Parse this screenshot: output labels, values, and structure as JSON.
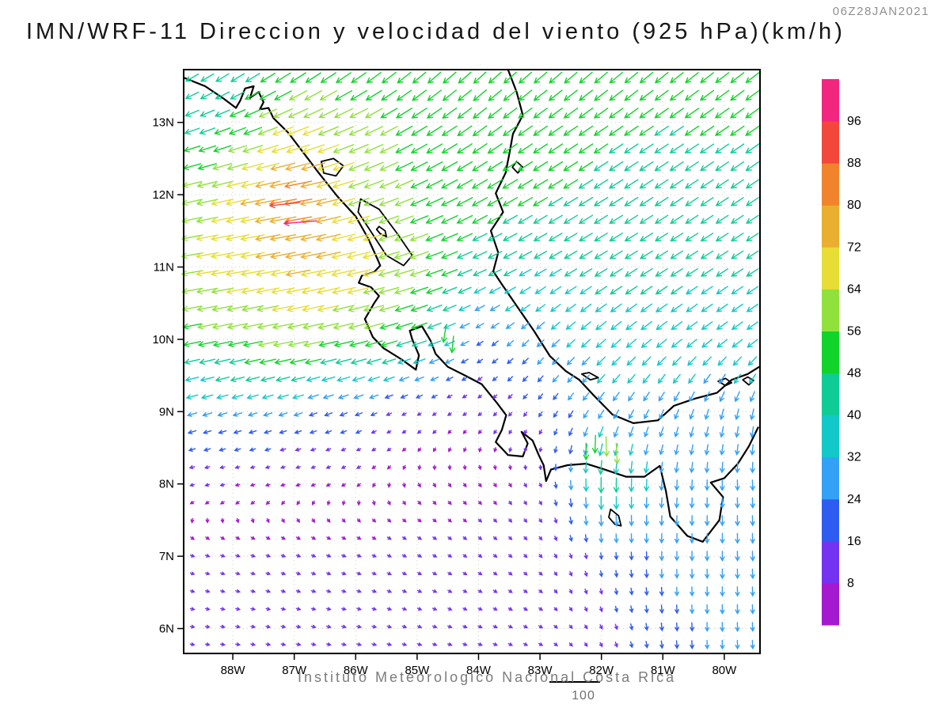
{
  "header": {
    "title": "IMN/WRF-11 Direccion y velocidad del viento (925 hPa)(km/h)",
    "timestamp": "06Z28JAN2021"
  },
  "footer": {
    "caption": "Instituto Meteorologico Nacional Costa Rica",
    "reference_label": "100"
  },
  "axes": {
    "lat_tick_labels": [
      "13N",
      "12N",
      "11N",
      "10N",
      "9N",
      "8N",
      "7N",
      "6N"
    ],
    "lat_tick_values": [
      13,
      12,
      11,
      10,
      9,
      8,
      7,
      6
    ],
    "lon_tick_labels": [
      "88W",
      "87W",
      "86W",
      "85W",
      "84W",
      "83W",
      "82W",
      "81W",
      "80W"
    ],
    "lon_tick_values": [
      -88,
      -87,
      -86,
      -85,
      -84,
      -83,
      -82,
      -81,
      -80
    ]
  },
  "colorbar": {
    "labels": [
      "96",
      "88",
      "80",
      "72",
      "64",
      "56",
      "48",
      "40",
      "32",
      "24",
      "16",
      "8"
    ],
    "colors_low_to_high": [
      "#A31ACF",
      "#7433F0",
      "#2E5CF0",
      "#33A1F6",
      "#12C8C8",
      "#0FCC96",
      "#11D42B",
      "#90E13B",
      "#E7DD35",
      "#EAAE30",
      "#F1832C",
      "#F4473C",
      "#F2267E"
    ]
  },
  "chart_data": {
    "type": "vector_field_map",
    "variable": "wind direction and speed",
    "level": "925 hPa",
    "units": "km/h",
    "lon_range": [
      -88.8,
      -79.43
    ],
    "lat_range": [
      5.66,
      13.73
    ],
    "speed_bins_kmh": [
      8,
      16,
      24,
      32,
      40,
      48,
      56,
      64,
      72,
      80,
      88,
      96
    ],
    "grid_lons": [
      -89,
      -88,
      -87,
      -86,
      -85,
      -84,
      -83,
      -82,
      -81,
      -80,
      -79
    ],
    "grid_lats": [
      14,
      13,
      12,
      11,
      10,
      9,
      8,
      7,
      6,
      5
    ],
    "u_kmh": [
      [
        -34,
        -34,
        -36,
        -35,
        -34,
        -34,
        -35,
        -36,
        -36,
        -37,
        -37
      ],
      [
        -38,
        -45,
        -60,
        -55,
        -45,
        -40,
        -40,
        -40,
        -40,
        -40,
        -40
      ],
      [
        -55,
        -65,
        -84,
        -60,
        -50,
        -45,
        -42,
        -40,
        -38,
        -36,
        -36
      ],
      [
        -60,
        -68,
        -72,
        -70,
        -55,
        -40,
        -35,
        -36,
        -35,
        -34,
        -34
      ],
      [
        -50,
        -55,
        -58,
        -55,
        -45,
        -18,
        -20,
        -28,
        -30,
        -30,
        -32
      ],
      [
        -28,
        -26,
        -24,
        -20,
        -10,
        -8,
        -10,
        -16,
        -12,
        -8,
        -6
      ],
      [
        -10,
        -8,
        -6,
        -4,
        2,
        4,
        4,
        0,
        -2,
        0,
        2
      ],
      [
        8,
        9,
        10,
        10,
        9,
        8,
        8,
        2,
        0,
        0,
        2
      ],
      [
        10,
        11,
        12,
        12,
        11,
        10,
        9,
        6,
        2,
        0,
        2
      ],
      [
        10,
        11,
        12,
        12,
        11,
        10,
        9,
        6,
        2,
        0,
        2
      ]
    ],
    "v_kmh": [
      [
        -24,
        -26,
        -30,
        -32,
        -34,
        -34,
        -34,
        -34,
        -32,
        -30,
        -30
      ],
      [
        -14,
        -18,
        -25,
        -25,
        -28,
        -30,
        -28,
        -28,
        -27,
        -28,
        -28
      ],
      [
        -12,
        -15,
        -14,
        -20,
        -22,
        -25,
        -25,
        -25,
        -25,
        -24,
        -24
      ],
      [
        -10,
        -12,
        -14,
        -16,
        -18,
        -18,
        -20,
        -22,
        -22,
        -22,
        -22
      ],
      [
        -10,
        -12,
        -12,
        -14,
        -15,
        -12,
        -20,
        -24,
        -24,
        -22,
        -22
      ],
      [
        -8,
        -8,
        -8,
        -8,
        -6,
        -6,
        -14,
        -24,
        -26,
        -30,
        -32
      ],
      [
        -3,
        -2,
        -2,
        -3,
        -4,
        -5,
        -8,
        -46,
        -30,
        -30,
        -30
      ],
      [
        -3,
        -3,
        -4,
        -4,
        -5,
        -6,
        -8,
        -18,
        -26,
        -28,
        -28
      ],
      [
        -2,
        -2,
        -3,
        -3,
        -4,
        -4,
        -5,
        -12,
        -22,
        -26,
        -24
      ],
      [
        -2,
        -2,
        -2,
        -3,
        -3,
        -4,
        -4,
        -10,
        -18,
        -22,
        -20
      ]
    ],
    "extra_arrows": [
      {
        "lon": -87.15,
        "lat": 11.87,
        "u": -90,
        "v": -10
      },
      {
        "lon": -86.9,
        "lat": 11.62,
        "u": -97,
        "v": -8
      },
      {
        "lon": -84.55,
        "lat": 10.08,
        "u": -8,
        "v": -52
      },
      {
        "lon": -84.42,
        "lat": 9.93,
        "u": -5,
        "v": -49
      },
      {
        "lon": -82.1,
        "lat": 8.55,
        "u": -2,
        "v": -52
      },
      {
        "lon": -81.92,
        "lat": 8.52,
        "u": 2,
        "v": -58
      },
      {
        "lon": -82.25,
        "lat": 8.45,
        "u": 0,
        "v": -49
      },
      {
        "lon": -81.75,
        "lat": 8.42,
        "u": 3,
        "v": -61
      }
    ],
    "coastlines": [
      [
        [
          -88.8,
          13.62
        ],
        [
          -88.45,
          13.5
        ],
        [
          -88.15,
          13.33
        ],
        [
          -87.95,
          13.2
        ],
        [
          -87.88,
          13.3
        ],
        [
          -87.8,
          13.47
        ],
        [
          -87.66,
          13.5
        ],
        [
          -87.72,
          13.34
        ],
        [
          -87.58,
          13.42
        ],
        [
          -87.5,
          13.28
        ],
        [
          -87.56,
          13.18
        ],
        [
          -87.42,
          13.2
        ],
        [
          -87.34,
          13.06
        ],
        [
          -87.1,
          12.86
        ],
        [
          -86.85,
          12.58
        ],
        [
          -86.6,
          12.3
        ],
        [
          -86.3,
          11.98
        ],
        [
          -86.0,
          11.7
        ],
        [
          -85.8,
          11.4
        ],
        [
          -85.65,
          11.12
        ],
        [
          -85.6,
          11.02
        ],
        [
          -85.7,
          10.93
        ],
        [
          -85.9,
          10.88
        ],
        [
          -85.95,
          10.78
        ],
        [
          -85.75,
          10.72
        ],
        [
          -85.62,
          10.6
        ],
        [
          -85.7,
          10.5
        ],
        [
          -85.85,
          10.28
        ],
        [
          -85.72,
          10.03
        ],
        [
          -85.55,
          9.88
        ],
        [
          -85.25,
          9.72
        ],
        [
          -85.02,
          9.58
        ],
        [
          -84.97,
          9.78
        ],
        [
          -85.08,
          10.0
        ],
        [
          -85.12,
          10.12
        ],
        [
          -84.92,
          10.18
        ],
        [
          -84.78,
          9.98
        ],
        [
          -84.7,
          9.8
        ],
        [
          -84.5,
          9.62
        ],
        [
          -84.22,
          9.5
        ],
        [
          -83.95,
          9.38
        ],
        [
          -83.7,
          9.12
        ],
        [
          -83.55,
          8.95
        ],
        [
          -83.62,
          8.75
        ],
        [
          -83.72,
          8.58
        ],
        [
          -83.52,
          8.4
        ],
        [
          -83.28,
          8.38
        ],
        [
          -83.2,
          8.56
        ],
        [
          -83.3,
          8.72
        ],
        [
          -83.12,
          8.6
        ],
        [
          -83.02,
          8.4
        ],
        [
          -82.94,
          8.26
        ],
        [
          -82.9,
          8.04
        ],
        [
          -82.82,
          8.2
        ],
        [
          -82.55,
          8.26
        ],
        [
          -82.25,
          8.28
        ],
        [
          -81.95,
          8.2
        ],
        [
          -81.6,
          8.1
        ],
        [
          -81.3,
          8.1
        ],
        [
          -81.05,
          8.25
        ],
        [
          -80.95,
          7.9
        ],
        [
          -80.88,
          7.55
        ],
        [
          -80.6,
          7.28
        ],
        [
          -80.35,
          7.2
        ],
        [
          -80.08,
          7.5
        ],
        [
          -80.02,
          7.82
        ],
        [
          -80.22,
          8.02
        ],
        [
          -80.0,
          8.08
        ],
        [
          -79.78,
          8.28
        ],
        [
          -79.6,
          8.52
        ],
        [
          -79.45,
          8.78
        ]
      ],
      [
        [
          -83.52,
          13.73
        ],
        [
          -83.38,
          13.42
        ],
        [
          -83.28,
          13.1
        ],
        [
          -83.44,
          12.84
        ],
        [
          -83.5,
          12.56
        ],
        [
          -83.56,
          12.3
        ],
        [
          -83.72,
          12.02
        ],
        [
          -83.6,
          11.76
        ],
        [
          -83.8,
          11.5
        ],
        [
          -83.68,
          11.2
        ],
        [
          -83.76,
          10.94
        ],
        [
          -83.62,
          10.76
        ],
        [
          -83.36,
          10.44
        ],
        [
          -83.1,
          10.12
        ],
        [
          -82.84,
          9.77
        ],
        [
          -82.58,
          9.56
        ],
        [
          -82.36,
          9.44
        ],
        [
          -82.12,
          9.22
        ],
        [
          -81.82,
          8.96
        ],
        [
          -81.48,
          8.84
        ],
        [
          -81.08,
          8.88
        ],
        [
          -80.82,
          9.08
        ],
        [
          -80.48,
          9.18
        ],
        [
          -80.12,
          9.26
        ],
        [
          -79.88,
          9.44
        ],
        [
          -79.62,
          9.52
        ],
        [
          -79.43,
          9.62
        ]
      ]
    ],
    "islands_lakes": [
      [
        [
          -86.56,
          12.46
        ],
        [
          -86.36,
          12.5
        ],
        [
          -86.2,
          12.4
        ],
        [
          -86.32,
          12.26
        ],
        [
          -86.52,
          12.3
        ],
        [
          -86.56,
          12.46
        ]
      ],
      [
        [
          -85.92,
          11.94
        ],
        [
          -85.62,
          11.8
        ],
        [
          -85.32,
          11.46
        ],
        [
          -85.08,
          11.16
        ],
        [
          -85.22,
          11.02
        ],
        [
          -85.5,
          11.16
        ],
        [
          -85.76,
          11.5
        ],
        [
          -85.96,
          11.76
        ],
        [
          -85.92,
          11.94
        ]
      ],
      [
        [
          -85.62,
          11.56
        ],
        [
          -85.52,
          11.5
        ],
        [
          -85.5,
          11.42
        ],
        [
          -85.6,
          11.46
        ],
        [
          -85.66,
          11.52
        ],
        [
          -85.62,
          11.56
        ]
      ],
      [
        [
          -83.38,
          12.46
        ],
        [
          -83.28,
          12.38
        ],
        [
          -83.36,
          12.3
        ],
        [
          -83.45,
          12.38
        ],
        [
          -83.38,
          12.46
        ]
      ],
      [
        [
          -82.32,
          9.52
        ],
        [
          -82.18,
          9.44
        ],
        [
          -82.05,
          9.47
        ],
        [
          -82.2,
          9.54
        ],
        [
          -82.32,
          9.52
        ]
      ],
      [
        [
          -81.85,
          7.65
        ],
        [
          -81.72,
          7.56
        ],
        [
          -81.68,
          7.42
        ],
        [
          -81.78,
          7.44
        ],
        [
          -81.88,
          7.54
        ],
        [
          -81.85,
          7.65
        ]
      ],
      [
        [
          -80.1,
          9.42
        ],
        [
          -79.98,
          9.36
        ],
        [
          -79.88,
          9.4
        ],
        [
          -79.98,
          9.46
        ],
        [
          -80.1,
          9.42
        ]
      ],
      [
        [
          -79.7,
          9.44
        ],
        [
          -79.6,
          9.37
        ],
        [
          -79.52,
          9.43
        ],
        [
          -79.62,
          9.48
        ],
        [
          -79.7,
          9.44
        ]
      ]
    ]
  }
}
